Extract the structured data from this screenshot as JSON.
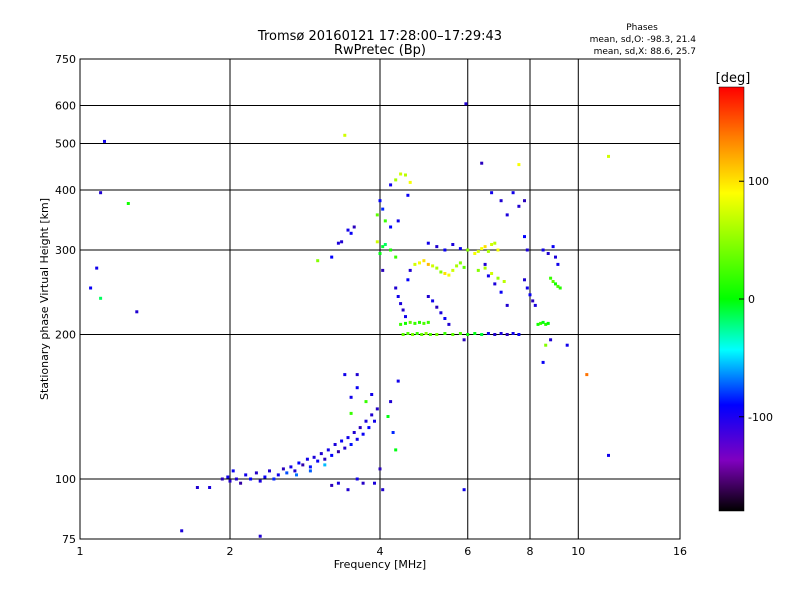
{
  "chart_data": {
    "type": "scatter",
    "title": "Tromsø 20160121 17:28:00–17:29:43",
    "subtitle": "RwPretec (Bp)",
    "xlabel": "Frequency [MHz]",
    "ylabel": "Stationary phase Virtual Height [km]",
    "x_scale": "log2",
    "y_scale": "log",
    "xlim": [
      1,
      16
    ],
    "ylim": [
      75,
      750
    ],
    "x_ticks": [
      1,
      2,
      4,
      6,
      8,
      10,
      16
    ],
    "y_ticks": [
      75,
      100,
      200,
      300,
      400,
      500,
      600,
      750
    ],
    "grid": true,
    "phase_stats": {
      "title": "Phases",
      "line_o": "mean, sd,O:  -98.3, 21.4",
      "line_x": "mean, sd,X:  88.6, 25.7"
    },
    "colorbar": {
      "label": "[deg]",
      "range": [
        -180,
        180
      ],
      "ticks": [
        100,
        0,
        -100
      ],
      "colormap": "rainbow"
    },
    "series": [
      {
        "points": [
          [
            1.72,
            96,
            -110
          ],
          [
            1.82,
            96,
            -105
          ],
          [
            1.93,
            100,
            -120
          ],
          [
            1.98,
            101,
            -100
          ],
          [
            2.0,
            99,
            -115
          ],
          [
            2.03,
            104,
            -95
          ],
          [
            2.06,
            100,
            -110
          ],
          [
            2.1,
            98,
            -130
          ],
          [
            2.15,
            102,
            -100
          ],
          [
            2.2,
            100,
            -90
          ],
          [
            2.26,
            103,
            -115
          ],
          [
            2.3,
            99,
            -105
          ],
          [
            2.35,
            101,
            -95
          ],
          [
            2.4,
            104,
            -110
          ],
          [
            2.45,
            100,
            -80
          ],
          [
            2.5,
            102,
            -100
          ],
          [
            2.56,
            105,
            -120
          ],
          [
            2.6,
            103,
            -70
          ],
          [
            2.65,
            106,
            -100
          ],
          [
            2.7,
            104,
            -110
          ],
          [
            2.75,
            108,
            -90
          ],
          [
            2.8,
            107,
            -125
          ],
          [
            2.86,
            110,
            -100
          ],
          [
            2.9,
            106,
            -85
          ],
          [
            2.95,
            111,
            -105
          ],
          [
            3.0,
            109,
            -95
          ],
          [
            3.05,
            113,
            -110
          ],
          [
            3.1,
            110,
            -120
          ],
          [
            3.15,
            115,
            -100
          ],
          [
            3.2,
            112,
            -90
          ],
          [
            3.25,
            118,
            -105
          ],
          [
            3.3,
            114,
            -130
          ],
          [
            3.35,
            120,
            -95
          ],
          [
            3.4,
            116,
            -110
          ],
          [
            3.45,
            122,
            -100
          ],
          [
            3.5,
            118,
            -85
          ],
          [
            3.55,
            125,
            -110
          ],
          [
            3.6,
            121,
            -100
          ],
          [
            3.65,
            128,
            -120
          ],
          [
            3.7,
            124,
            -95
          ],
          [
            3.75,
            132,
            -105
          ],
          [
            3.8,
            128,
            -90
          ],
          [
            3.85,
            136,
            -110
          ],
          [
            3.9,
            132,
            -100
          ],
          [
            3.95,
            140,
            -115
          ],
          [
            3.5,
            148,
            -100
          ],
          [
            3.6,
            155,
            -95
          ],
          [
            3.3,
            98,
            -105
          ],
          [
            3.45,
            95,
            -110
          ],
          [
            3.2,
            97,
            -120
          ],
          [
            2.72,
            102,
            -60
          ],
          [
            2.9,
            104,
            -65
          ],
          [
            3.1,
            107,
            -40
          ],
          [
            3.5,
            137,
            60
          ],
          [
            3.6,
            165,
            -110
          ],
          [
            3.4,
            165,
            -100
          ],
          [
            3.3,
            310,
            -105
          ],
          [
            3.35,
            312,
            -110
          ],
          [
            3.45,
            330,
            -100
          ],
          [
            3.5,
            325,
            -95
          ],
          [
            3.55,
            335,
            -120
          ],
          [
            3.0,
            285,
            80
          ],
          [
            3.2,
            290,
            -90
          ],
          [
            4.0,
            295,
            40
          ],
          [
            4.05,
            305,
            30
          ],
          [
            4.1,
            308,
            20
          ],
          [
            4.2,
            300,
            50
          ],
          [
            4.3,
            290,
            60
          ],
          [
            4.2,
            335,
            -90
          ],
          [
            4.35,
            345,
            -100
          ],
          [
            4.3,
            420,
            90
          ],
          [
            4.4,
            432,
            100
          ],
          [
            4.5,
            430,
            95
          ],
          [
            4.6,
            415,
            110
          ],
          [
            4.55,
            390,
            -95
          ],
          [
            4.05,
            365,
            -80
          ],
          [
            3.95,
            355,
            70
          ],
          [
            4.3,
            250,
            -110
          ],
          [
            4.35,
            240,
            -100
          ],
          [
            4.4,
            232,
            -105
          ],
          [
            4.45,
            225,
            -115
          ],
          [
            4.5,
            218,
            -100
          ],
          [
            4.55,
            260,
            -90
          ],
          [
            4.6,
            272,
            -110
          ],
          [
            4.7,
            280,
            100
          ],
          [
            4.8,
            282,
            110
          ],
          [
            4.9,
            285,
            120
          ],
          [
            5.0,
            280,
            130
          ],
          [
            5.1,
            278,
            100
          ],
          [
            5.2,
            275,
            90
          ],
          [
            5.3,
            270,
            80
          ],
          [
            5.4,
            268,
            120
          ],
          [
            5.5,
            266,
            110
          ],
          [
            5.6,
            272,
            100
          ],
          [
            5.7,
            278,
            90
          ],
          [
            5.8,
            282,
            80
          ],
          [
            5.9,
            276,
            70
          ],
          [
            4.4,
            210,
            60
          ],
          [
            4.5,
            211,
            50
          ],
          [
            4.6,
            212,
            70
          ],
          [
            4.7,
            211,
            60
          ],
          [
            4.8,
            212,
            55
          ],
          [
            4.9,
            211,
            65
          ],
          [
            5.0,
            212,
            60
          ],
          [
            4.45,
            200,
            70
          ],
          [
            4.55,
            201,
            65
          ],
          [
            4.65,
            200,
            75
          ],
          [
            4.75,
            201,
            60
          ],
          [
            4.85,
            200,
            70
          ],
          [
            4.95,
            201,
            80
          ],
          [
            5.05,
            200,
            65
          ],
          [
            5.2,
            200,
            75
          ],
          [
            5.4,
            201,
            60
          ],
          [
            5.6,
            200,
            70
          ],
          [
            5.8,
            201,
            65
          ],
          [
            6.0,
            200,
            50
          ],
          [
            6.2,
            201,
            40
          ],
          [
            6.4,
            200,
            30
          ],
          [
            6.6,
            201,
            -100
          ],
          [
            6.8,
            200,
            -110
          ],
          [
            7.0,
            201,
            -105
          ],
          [
            7.2,
            200,
            -120
          ],
          [
            7.4,
            201,
            -100
          ],
          [
            7.6,
            200,
            -95
          ],
          [
            5.0,
            240,
            -110
          ],
          [
            5.1,
            235,
            -100
          ],
          [
            5.2,
            228,
            -120
          ],
          [
            5.3,
            222,
            -105
          ],
          [
            5.4,
            216,
            -95
          ],
          [
            5.5,
            210,
            -110
          ],
          [
            5.0,
            310,
            -100
          ],
          [
            5.2,
            305,
            -110
          ],
          [
            5.4,
            300,
            -95
          ],
          [
            5.6,
            308,
            -105
          ],
          [
            5.8,
            302,
            -100
          ],
          [
            5.9,
            195,
            -120
          ],
          [
            5.95,
            605,
            -110
          ],
          [
            5.9,
            95,
            -100
          ],
          [
            6.0,
            300,
            80
          ],
          [
            6.2,
            295,
            110
          ],
          [
            6.3,
            298,
            100
          ],
          [
            6.4,
            302,
            110
          ],
          [
            6.5,
            305,
            120
          ],
          [
            6.6,
            298,
            90
          ],
          [
            6.7,
            308,
            100
          ],
          [
            6.8,
            310,
            95
          ],
          [
            6.9,
            300,
            110
          ],
          [
            6.4,
            455,
            -120
          ],
          [
            6.7,
            395,
            -100
          ],
          [
            7.0,
            380,
            -110
          ],
          [
            7.2,
            355,
            -105
          ],
          [
            6.5,
            280,
            -110
          ],
          [
            6.6,
            265,
            -100
          ],
          [
            6.8,
            255,
            -105
          ],
          [
            7.0,
            245,
            -95
          ],
          [
            7.2,
            230,
            -110
          ],
          [
            6.3,
            272,
            80
          ],
          [
            6.5,
            275,
            90
          ],
          [
            6.7,
            268,
            100
          ],
          [
            6.9,
            262,
            85
          ],
          [
            7.1,
            258,
            95
          ],
          [
            7.4,
            395,
            -100
          ],
          [
            7.6,
            370,
            -110
          ],
          [
            7.8,
            380,
            -120
          ],
          [
            7.8,
            320,
            -90
          ],
          [
            7.9,
            300,
            -105
          ],
          [
            7.8,
            260,
            -110
          ],
          [
            7.9,
            250,
            -100
          ],
          [
            8.0,
            242,
            -95
          ],
          [
            8.1,
            235,
            -120
          ],
          [
            8.2,
            230,
            -105
          ],
          [
            8.3,
            210,
            50
          ],
          [
            8.4,
            211,
            60
          ],
          [
            8.5,
            212,
            40
          ],
          [
            8.6,
            210,
            55
          ],
          [
            8.7,
            211,
            45
          ],
          [
            8.8,
            262,
            60
          ],
          [
            8.9,
            258,
            70
          ],
          [
            9.0,
            255,
            50
          ],
          [
            9.1,
            252,
            65
          ],
          [
            9.2,
            250,
            55
          ],
          [
            8.5,
            300,
            -100
          ],
          [
            8.7,
            295,
            -110
          ],
          [
            8.9,
            305,
            -95
          ],
          [
            9.0,
            290,
            -105
          ],
          [
            9.1,
            280,
            -100
          ],
          [
            8.6,
            190,
            80
          ],
          [
            8.8,
            195,
            -110
          ],
          [
            8.5,
            175,
            -95
          ],
          [
            9.5,
            190,
            -100
          ],
          [
            10.4,
            165,
            150
          ],
          [
            11.5,
            112,
            -100
          ],
          [
            11.5,
            470,
            100
          ],
          [
            7.6,
            452,
            110
          ],
          [
            3.4,
            520,
            100
          ],
          [
            2.3,
            76,
            -110
          ],
          [
            1.6,
            78,
            -105
          ],
          [
            1.25,
            375,
            50
          ],
          [
            1.12,
            505,
            -100
          ],
          [
            1.1,
            395,
            -110
          ],
          [
            1.08,
            275,
            -100
          ],
          [
            1.1,
            238,
            20
          ],
          [
            1.3,
            223,
            -110
          ],
          [
            1.05,
            250,
            -95
          ],
          [
            4.05,
            272,
            -120
          ],
          [
            3.95,
            312,
            100
          ],
          [
            4.1,
            345,
            60
          ],
          [
            4.2,
            410,
            -100
          ],
          [
            4.0,
            380,
            -90
          ],
          [
            4.15,
            135,
            40
          ],
          [
            4.2,
            145,
            -110
          ],
          [
            4.25,
            125,
            -80
          ],
          [
            4.3,
            115,
            40
          ],
          [
            4.35,
            160,
            -100
          ],
          [
            3.75,
            145,
            60
          ],
          [
            3.85,
            150,
            -100
          ],
          [
            4.0,
            105,
            -120
          ],
          [
            4.05,
            95,
            -110
          ],
          [
            3.6,
            100,
            -100
          ],
          [
            3.7,
            98,
            -115
          ],
          [
            3.9,
            98,
            -105
          ]
        ]
      }
    ]
  }
}
